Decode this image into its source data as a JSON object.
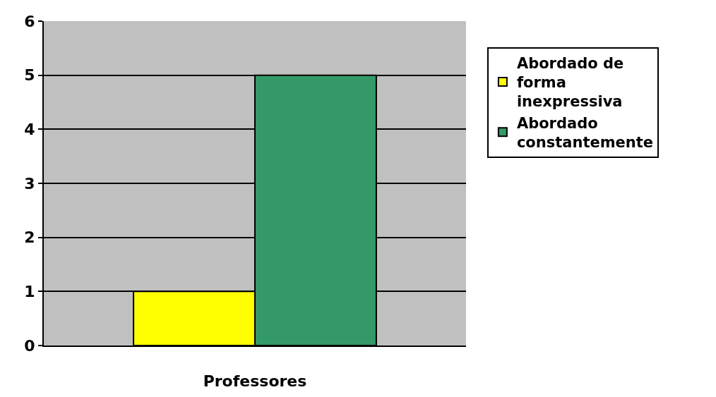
{
  "chart_data": {
    "type": "bar",
    "categories": [
      "Professores"
    ],
    "series": [
      {
        "name": "Abordado de forma inexpressiva",
        "color": "#ffff00",
        "values": [
          1
        ]
      },
      {
        "name": "Abordado constantemente",
        "color": "#339966",
        "values": [
          5
        ]
      }
    ],
    "ylim": [
      0,
      6
    ],
    "yticks": [
      0,
      1,
      2,
      3,
      4,
      5,
      6
    ],
    "grid": "y",
    "legend": "right"
  }
}
